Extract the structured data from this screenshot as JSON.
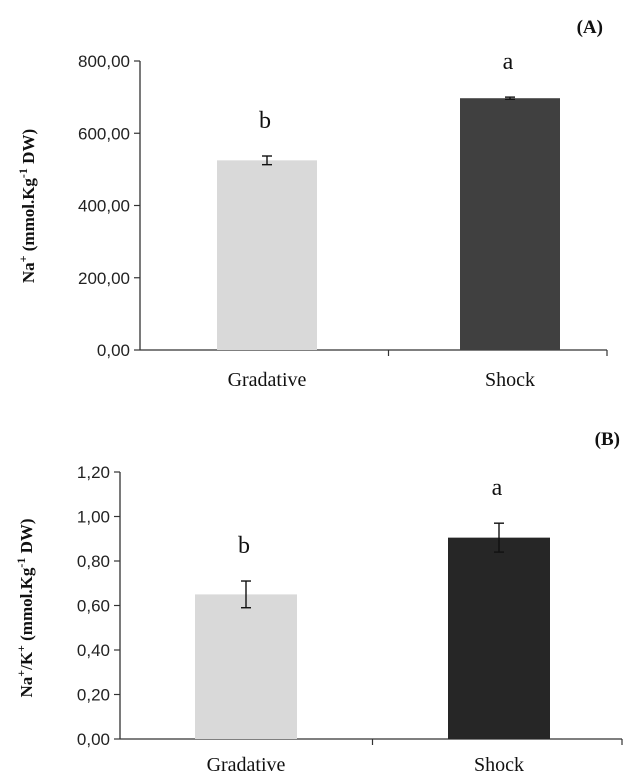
{
  "chart_data": [
    {
      "type": "bar",
      "panel_label": "(A)",
      "categories": [
        "Gradative",
        "Shock"
      ],
      "values": [
        525,
        697
      ],
      "errors": [
        12,
        3
      ],
      "letters": [
        "b",
        "a"
      ],
      "ylabel": {
        "base": "Na",
        "sup": "+",
        "text1": " (mmol.Kg",
        "sup2": "-1",
        "text2": " DW)"
      },
      "yticks": [
        "0,00",
        "200,00",
        "400,00",
        "600,00",
        "800,00"
      ],
      "ylim": [
        0,
        800
      ],
      "colors": [
        "#d9d9d9",
        "#404040"
      ],
      "grid": false,
      "legend": "none"
    },
    {
      "type": "bar",
      "panel_label": "(B)",
      "categories": [
        "Gradative",
        "Shock"
      ],
      "values": [
        0.65,
        0.905
      ],
      "errors": [
        0.06,
        0.065
      ],
      "letters": [
        "b",
        "a"
      ],
      "ylabel": {
        "base": "Na",
        "sup": "+",
        "mid": "/K",
        "sup1b": "+",
        "text1": "  (mmol.Kg",
        "sup2": "-1",
        "text2": " DW)"
      },
      "yticks": [
        "0,00",
        "0,20",
        "0,40",
        "0,60",
        "0,80",
        "1,00",
        "1,20"
      ],
      "ylim": [
        0,
        1.2
      ],
      "colors": [
        "#d9d9d9",
        "#262626"
      ],
      "grid": false,
      "legend": "none"
    }
  ]
}
